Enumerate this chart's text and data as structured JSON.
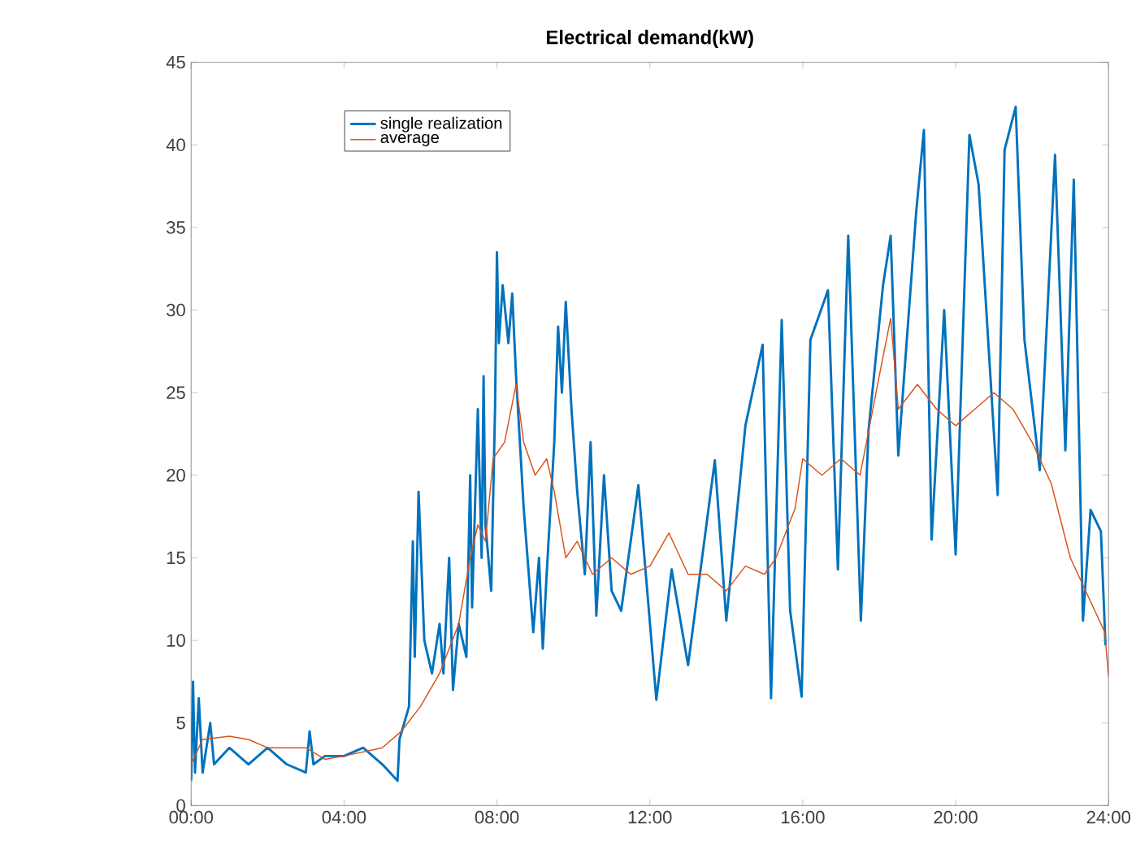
{
  "chart_data": {
    "type": "line",
    "title": "Electrical demand(kW)",
    "xlim": [
      0,
      24
    ],
    "ylim": [
      0,
      45
    ],
    "xticks": [
      {
        "value": 0,
        "label": "00:00"
      },
      {
        "value": 4,
        "label": "04:00"
      },
      {
        "value": 8,
        "label": "08:00"
      },
      {
        "value": 12,
        "label": "12:00"
      },
      {
        "value": 16,
        "label": "16:00"
      },
      {
        "value": 20,
        "label": "20:00"
      },
      {
        "value": 24,
        "label": "24:00"
      }
    ],
    "yticks": [
      0,
      5,
      10,
      15,
      20,
      25,
      30,
      35,
      40,
      45
    ],
    "grid": false,
    "legend": "top left",
    "series": [
      {
        "name": "single realization",
        "color": "#0072bd",
        "x": [
          0,
          0.05,
          0.1,
          0.2,
          0.3,
          0.5,
          0.6,
          1,
          1.5,
          2,
          2.5,
          3,
          3.1,
          3.2,
          3.5,
          4,
          4.5,
          5,
          5.4,
          5.45,
          5.7,
          5.8,
          5.85,
          5.95,
          6.1,
          6.3,
          6.5,
          6.6,
          6.75,
          6.85,
          7,
          7.2,
          7.3,
          7.35,
          7.5,
          7.6,
          7.65,
          7.7,
          7.85,
          7.95,
          8,
          8.05,
          8.15,
          8.3,
          8.4,
          8.5,
          8.6,
          8.7,
          8.8,
          8.95,
          9.1,
          9.2,
          9.3,
          9.5,
          9.6,
          9.7,
          9.8,
          9.95,
          10.1,
          10.3,
          10.45,
          10.6,
          10.8,
          11,
          11.25,
          11.7,
          12.17,
          12.57,
          13,
          13.7,
          14,
          14.5,
          14.95,
          15.17,
          15.45,
          15.67,
          15.97,
          16.2,
          16.66,
          16.92,
          17.19,
          17.52,
          17.72,
          18.1,
          18.3,
          18.5,
          18.97,
          19.17,
          19.37,
          19.7,
          20,
          20.36,
          20.6,
          21.1,
          21.28,
          21.57,
          21.8,
          22.2,
          22.6,
          22.87,
          23.09,
          23.33,
          23.53,
          23.8,
          23.92
        ],
        "values": [
          1.5,
          7.5,
          2,
          6.5,
          2,
          5,
          2.5,
          3.5,
          2.5,
          3.5,
          2.5,
          2,
          4.5,
          2.5,
          3,
          3,
          3.5,
          2.5,
          1.5,
          4,
          6,
          16,
          9,
          19,
          10,
          8,
          11,
          8,
          15,
          7,
          11,
          9,
          20,
          12,
          24,
          15,
          26,
          17,
          13,
          24,
          33.5,
          28,
          31.5,
          28,
          31,
          26,
          22,
          18,
          15,
          10.5,
          15,
          9.5,
          14,
          22,
          29,
          25,
          30.5,
          24,
          19,
          14,
          22,
          11.5,
          20,
          13,
          11.8,
          19.4,
          6.4,
          14.3,
          8.5,
          20.9,
          11.2,
          23,
          27.9,
          6.5,
          29.4,
          11.8,
          6.6,
          28.2,
          31.2,
          14.3,
          34.5,
          11.2,
          22.7,
          31.5,
          34.5,
          21.2,
          36,
          40.9,
          16.1,
          30,
          15.2,
          40.6,
          37.6,
          18.8,
          39.7,
          42.3,
          28.2,
          20.3,
          39.4,
          21.5,
          37.9,
          11.2,
          17.9,
          16.6,
          9.7
        ]
      },
      {
        "name": "average",
        "color": "#d95319",
        "x": [
          0,
          0.3,
          1,
          1.5,
          2,
          3,
          3.5,
          4,
          5,
          5.5,
          6,
          6.5,
          7,
          7.3,
          7.5,
          7.7,
          7.9,
          8.2,
          8.5,
          8.7,
          9,
          9.3,
          9.5,
          9.8,
          10.1,
          10.5,
          11,
          11.5,
          12,
          12.5,
          13,
          13.5,
          14,
          14.5,
          15,
          15.3,
          15.8,
          16,
          16.5,
          17,
          17.5,
          18,
          18.3,
          18.5,
          19,
          19.5,
          20,
          20.5,
          21,
          21.5,
          22,
          22.5,
          23,
          23.5,
          23.9,
          24
        ],
        "values": [
          2.5,
          4,
          4.2,
          4,
          3.5,
          3.5,
          2.8,
          3,
          3.5,
          4.5,
          6,
          8,
          11,
          15,
          17,
          16,
          21,
          22,
          25.5,
          22,
          20,
          21,
          19,
          15,
          16,
          14,
          15,
          14,
          14.5,
          16.5,
          14,
          14,
          13,
          14.5,
          14,
          15,
          18,
          21,
          20,
          21,
          20,
          26,
          29.5,
          24,
          25.5,
          24,
          23,
          24,
          25,
          24,
          22,
          19.5,
          15,
          12.5,
          10.5,
          7.8
        ]
      }
    ]
  }
}
